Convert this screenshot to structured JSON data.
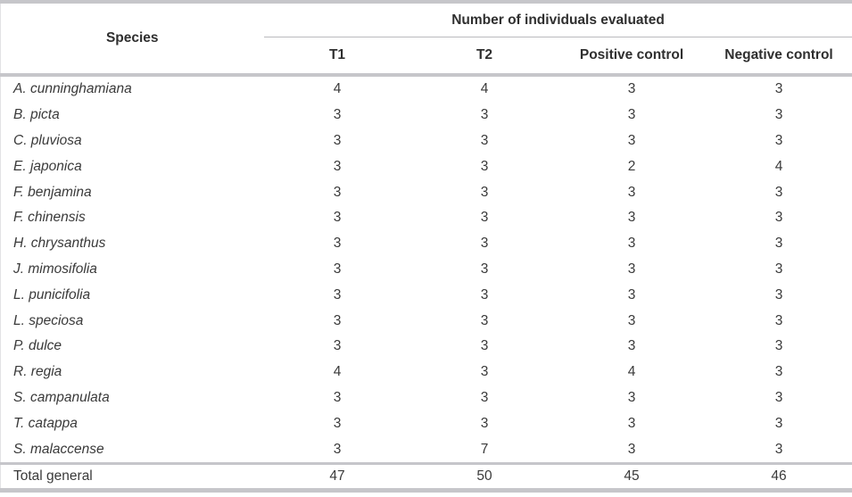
{
  "table": {
    "species_header": "Species",
    "group_header": "Number of individuals evaluated",
    "columns": [
      "T1",
      "T2",
      "Positive control",
      "Negative control"
    ],
    "rows": [
      {
        "species": "A. cunninghamiana",
        "values": [
          "4",
          "4",
          "3",
          "3"
        ]
      },
      {
        "species": "B. picta",
        "values": [
          "3",
          "3",
          "3",
          "3"
        ]
      },
      {
        "species": "C. pluviosa",
        "values": [
          "3",
          "3",
          "3",
          "3"
        ]
      },
      {
        "species": "E. japonica",
        "values": [
          "3",
          "3",
          "2",
          "4"
        ]
      },
      {
        "species": "F. benjamina",
        "values": [
          "3",
          "3",
          "3",
          "3"
        ]
      },
      {
        "species": "F. chinensis",
        "values": [
          "3",
          "3",
          "3",
          "3"
        ]
      },
      {
        "species": "H. chrysanthus",
        "values": [
          "3",
          "3",
          "3",
          "3"
        ]
      },
      {
        "species": "J. mimosifolia",
        "values": [
          "3",
          "3",
          "3",
          "3"
        ]
      },
      {
        "species": "L. punicifolia",
        "values": [
          "3",
          "3",
          "3",
          "3"
        ]
      },
      {
        "species": "L. speciosa",
        "values": [
          "3",
          "3",
          "3",
          "3"
        ]
      },
      {
        "species": "P. dulce",
        "values": [
          "3",
          "3",
          "3",
          "3"
        ]
      },
      {
        "species": "R. regia",
        "values": [
          "4",
          "3",
          "4",
          "3"
        ]
      },
      {
        "species": "S. campanulata",
        "values": [
          "3",
          "3",
          "3",
          "3"
        ]
      },
      {
        "species": "T. catappa",
        "values": [
          "3",
          "3",
          "3",
          "3"
        ]
      },
      {
        "species": "S. malaccense",
        "values": [
          "3",
          "7",
          "3",
          "3"
        ]
      }
    ],
    "total": {
      "label": "Total general",
      "values": [
        "47",
        "50",
        "45",
        "46"
      ]
    }
  },
  "colors": {
    "rule_thick": "#c6c6ca",
    "rule_thin": "#b9b9bd",
    "text": "#3a3a3a"
  },
  "chart_data": {
    "type": "table",
    "group_header": "Number of individuals evaluated",
    "columns": [
      "Species",
      "T1",
      "T2",
      "Positive control",
      "Negative control"
    ],
    "rows": [
      [
        "A. cunninghamiana",
        4,
        4,
        3,
        3
      ],
      [
        "B. picta",
        3,
        3,
        3,
        3
      ],
      [
        "C. pluviosa",
        3,
        3,
        3,
        3
      ],
      [
        "E. japonica",
        3,
        3,
        2,
        4
      ],
      [
        "F. benjamina",
        3,
        3,
        3,
        3
      ],
      [
        "F. chinensis",
        3,
        3,
        3,
        3
      ],
      [
        "H. chrysanthus",
        3,
        3,
        3,
        3
      ],
      [
        "J. mimosifolia",
        3,
        3,
        3,
        3
      ],
      [
        "L. punicifolia",
        3,
        3,
        3,
        3
      ],
      [
        "L. speciosa",
        3,
        3,
        3,
        3
      ],
      [
        "P. dulce",
        3,
        3,
        3,
        3
      ],
      [
        "R. regia",
        4,
        3,
        4,
        3
      ],
      [
        "S. campanulata",
        3,
        3,
        3,
        3
      ],
      [
        "T. catappa",
        3,
        3,
        3,
        3
      ],
      [
        "S. malaccense",
        3,
        7,
        3,
        3
      ]
    ],
    "total_row": [
      "Total general",
      47,
      50,
      45,
      46
    ]
  }
}
